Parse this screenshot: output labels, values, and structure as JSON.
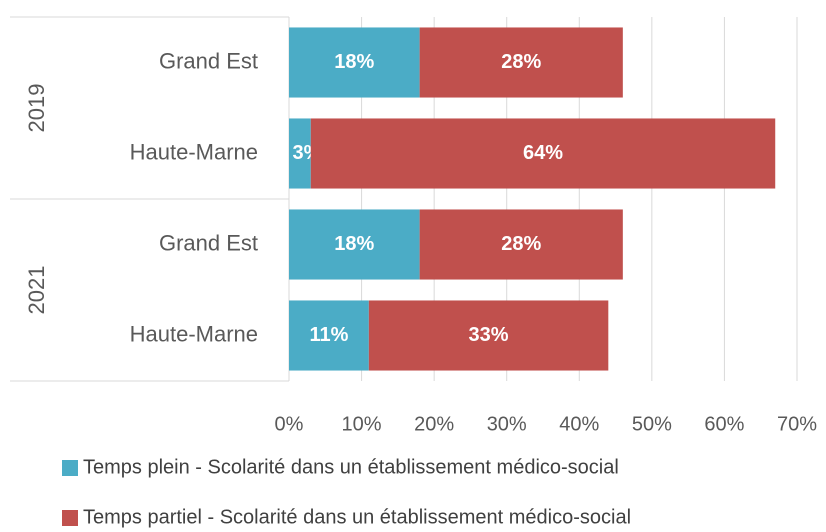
{
  "chart_data": {
    "type": "stacked-barh",
    "groups": [
      "2019",
      "2021"
    ],
    "categories": [
      "Grand Est",
      "Haute-Marne",
      "Grand Est",
      "Haute-Marne"
    ],
    "series": [
      {
        "name": "Temps plein - Scolarité dans un établissement médico-social",
        "color": "#4bacc6",
        "values": [
          18,
          3,
          18,
          11
        ],
        "value_labels": [
          "18%",
          "3%",
          "18%",
          "11%"
        ]
      },
      {
        "name": "Temps partiel  - Scolarité dans un établissement médico-social",
        "color": "#c0504d",
        "values": [
          28,
          64,
          28,
          33
        ],
        "value_labels": [
          "28%",
          "64%",
          "28%",
          "33%"
        ]
      }
    ],
    "xlim": [
      0,
      70
    ],
    "xticks": [
      {
        "value": 0,
        "label": "0%"
      },
      {
        "value": 10,
        "label": "10%"
      },
      {
        "value": 20,
        "label": "20%"
      },
      {
        "value": 30,
        "label": "30%"
      },
      {
        "value": 40,
        "label": "40%"
      },
      {
        "value": 50,
        "label": "50%"
      },
      {
        "value": 60,
        "label": "60%"
      },
      {
        "value": 70,
        "label": "70%"
      }
    ],
    "grid": true,
    "legend": "bottom"
  }
}
